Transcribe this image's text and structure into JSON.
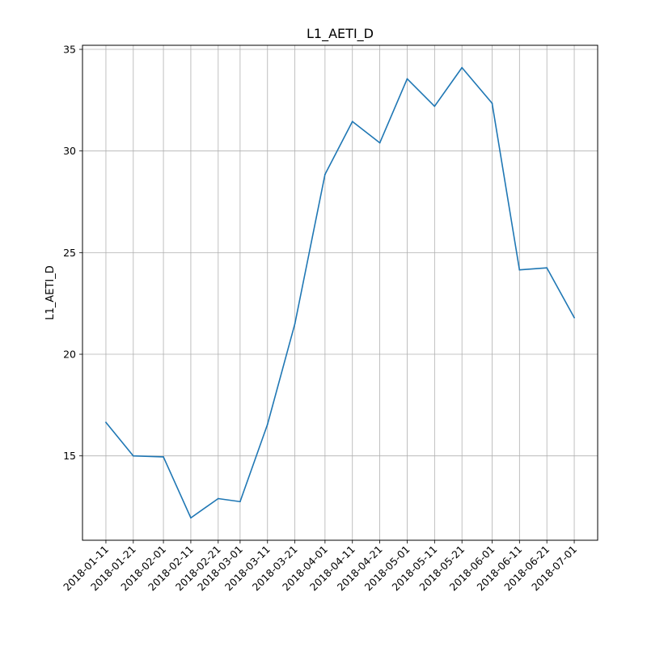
{
  "chart_data": {
    "type": "line",
    "title": "L1_AETI_D",
    "xlabel": "",
    "ylabel": "L1_AETI_D",
    "x": [
      "2018-01-11",
      "2018-01-21",
      "2018-02-01",
      "2018-02-11",
      "2018-02-21",
      "2018-03-01",
      "2018-03-11",
      "2018-03-21",
      "2018-04-01",
      "2018-04-11",
      "2018-04-21",
      "2018-05-01",
      "2018-05-11",
      "2018-05-21",
      "2018-06-01",
      "2018-06-11",
      "2018-06-21",
      "2018-07-01"
    ],
    "series": [
      {
        "name": "",
        "color": "#1f77b4",
        "values": [
          16.65,
          15.0,
          14.95,
          11.95,
          12.9,
          12.75,
          16.55,
          21.5,
          28.85,
          31.45,
          30.4,
          33.55,
          32.2,
          34.1,
          32.35,
          24.15,
          24.25,
          21.8
        ]
      }
    ],
    "xticks": [
      "2018-01-11",
      "2018-01-21",
      "2018-02-01",
      "2018-02-11",
      "2018-02-21",
      "2018-03-01",
      "2018-03-11",
      "2018-03-21",
      "2018-04-01",
      "2018-04-11",
      "2018-04-21",
      "2018-05-01",
      "2018-05-11",
      "2018-05-21",
      "2018-06-01",
      "2018-06-11",
      "2018-06-21",
      "2018-07-01"
    ],
    "yticks": [
      15,
      20,
      25,
      30,
      35
    ],
    "ylim": [
      10.85,
      35.2
    ],
    "grid": true,
    "legend": "none"
  }
}
